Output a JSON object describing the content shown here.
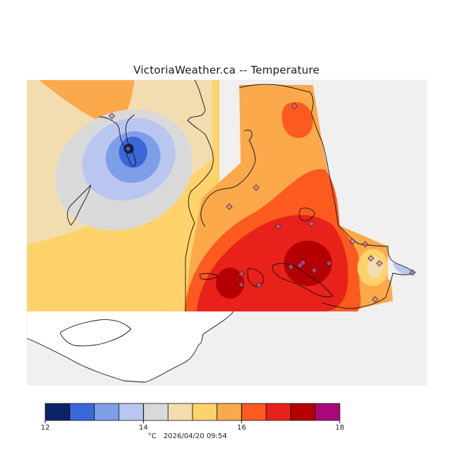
{
  "title": "VictoriaWeather.ca -- Temperature",
  "legend": {
    "colors": [
      "#0a2466",
      "#3a68d8",
      "#7f9ee8",
      "#b9c6ef",
      "#d9d9d9",
      "#f2ddb0",
      "#fed36b",
      "#fca94c",
      "#fc5a1e",
      "#e8211a",
      "#b40000",
      "#a8087c"
    ],
    "min": 12,
    "max": 18,
    "tick_labels": [
      "12",
      "14",
      "16",
      "18"
    ],
    "tick_values": [
      12,
      14,
      16,
      18
    ],
    "unit": "°C",
    "timestamp": "2026/04/20 09:54"
  },
  "map": {
    "variable": "Temperature",
    "unit": "°C",
    "station_marker": "diamond-icon",
    "ocean_color": "#f0f0f0",
    "land_color": "#ffffff"
  }
}
